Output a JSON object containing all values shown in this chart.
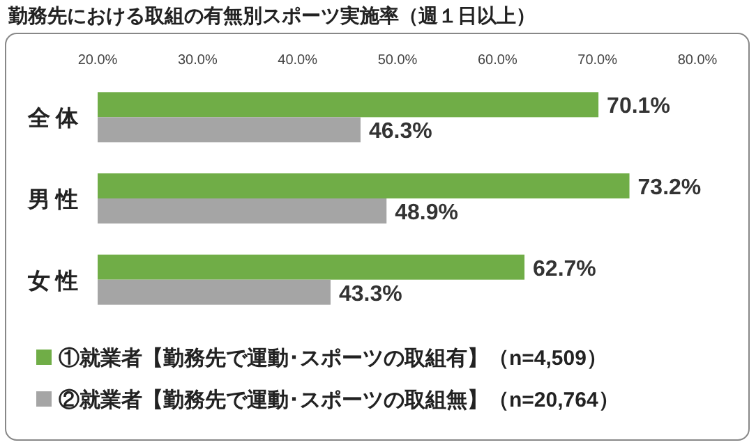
{
  "chart_data": {
    "type": "bar",
    "orientation": "horizontal",
    "title": "勤務先における取組の有無別スポーツ実施率（週１日以上）",
    "categories": [
      "全 体",
      "男 性",
      "女 性"
    ],
    "series": [
      {
        "name": "①就業者【勤務先で運動･スポーツの取組有】（n=4,509）",
        "color": "#70ad47",
        "values": [
          70.1,
          73.2,
          62.7
        ],
        "value_labels": [
          "70.1%",
          "73.2%",
          "62.7%"
        ]
      },
      {
        "name": "②就業者【勤務先で運動･スポーツの取組無】（n=20,764）",
        "color": "#a5a5a5",
        "values": [
          46.3,
          48.9,
          43.3
        ],
        "value_labels": [
          "46.3%",
          "48.9%",
          "43.3%"
        ]
      }
    ],
    "xlim": [
      20,
      80
    ],
    "xticks": [
      {
        "value": 20,
        "label": "20.0%"
      },
      {
        "value": 30,
        "label": "30.0%"
      },
      {
        "value": 40,
        "label": "40.0%"
      },
      {
        "value": 50,
        "label": "50.0%"
      },
      {
        "value": 60,
        "label": "60.0%"
      },
      {
        "value": 70,
        "label": "70.0%"
      },
      {
        "value": 80,
        "label": "80.0%"
      }
    ],
    "legend": "bottom",
    "grid": false
  }
}
